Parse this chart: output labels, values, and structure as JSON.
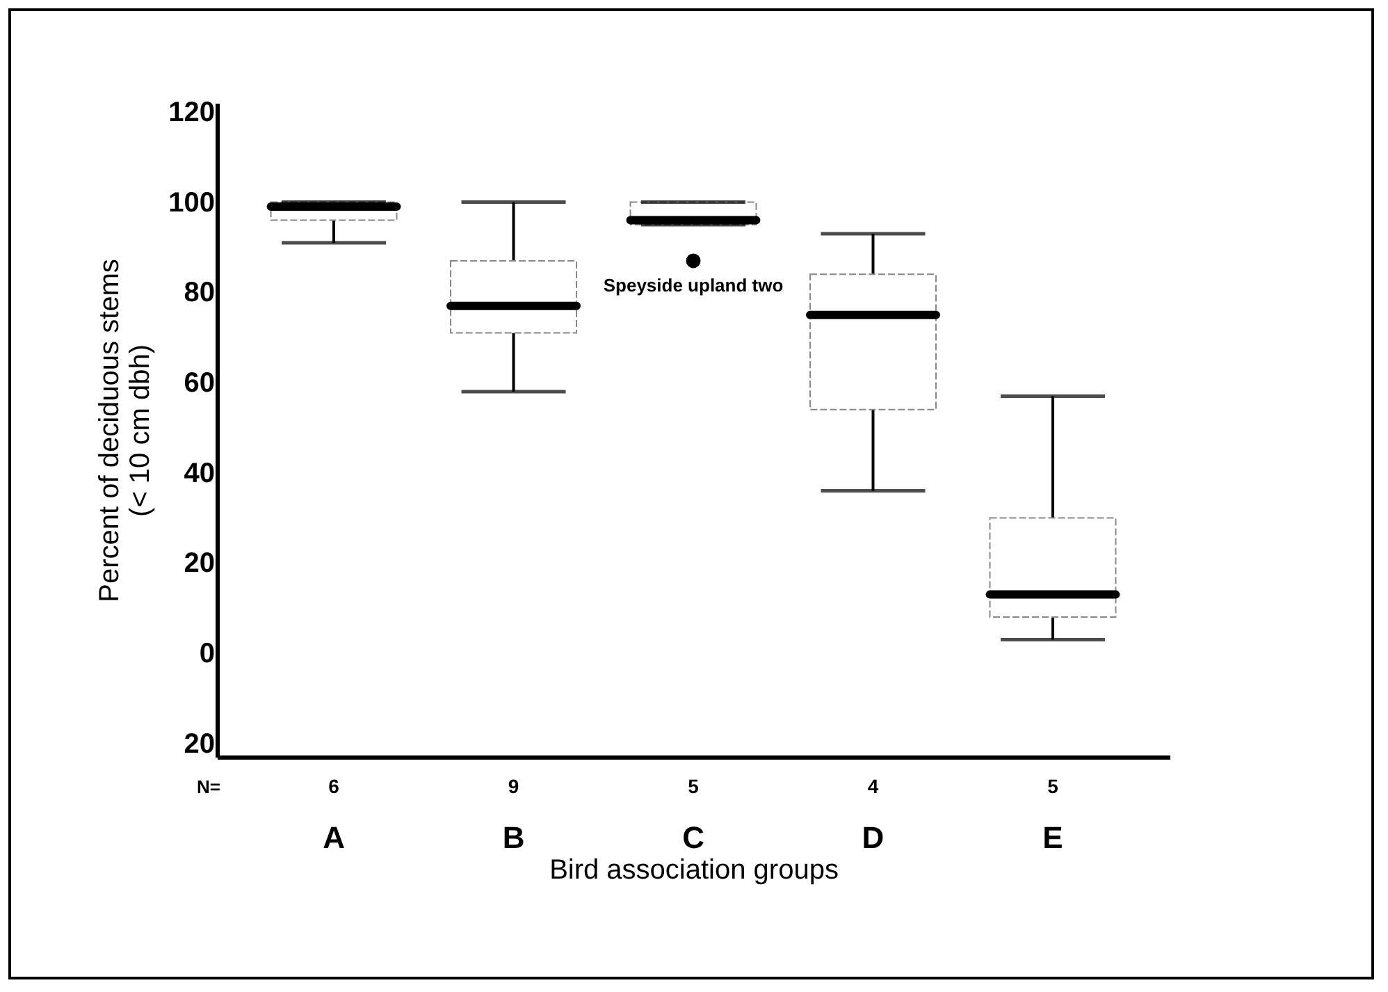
{
  "chart_data": {
    "type": "box",
    "xlabel": "Bird association groups",
    "ylabel": "Percent of deciduous stems\n(< 10 cm dbh)",
    "categories": [
      "A",
      "B",
      "C",
      "D",
      "E"
    ],
    "boxes": [
      {
        "low": 91,
        "q1": 96,
        "median": 99,
        "q3": 100,
        "high": 100
      },
      {
        "low": 58,
        "q1": 71,
        "median": 77,
        "q3": 87,
        "high": 100
      },
      {
        "low": 95,
        "q1": 95,
        "median": 96,
        "q3": 100,
        "high": 100,
        "outliers": [
          87
        ]
      },
      {
        "low": 36,
        "q1": 54,
        "median": 75,
        "q3": 84,
        "high": 93
      },
      {
        "low": 3,
        "q1": 8,
        "median": 13,
        "q3": 30,
        "high": 57
      }
    ],
    "ylim": [
      -23,
      122
    ],
    "yticks": [
      {
        "value": -20,
        "label": "20"
      },
      0,
      20,
      40,
      60,
      80,
      100,
      120
    ],
    "grid": false,
    "annotations": [
      "N=",
      "6",
      "9",
      "5",
      "4",
      "5",
      "Speyside upland two"
    ]
  }
}
